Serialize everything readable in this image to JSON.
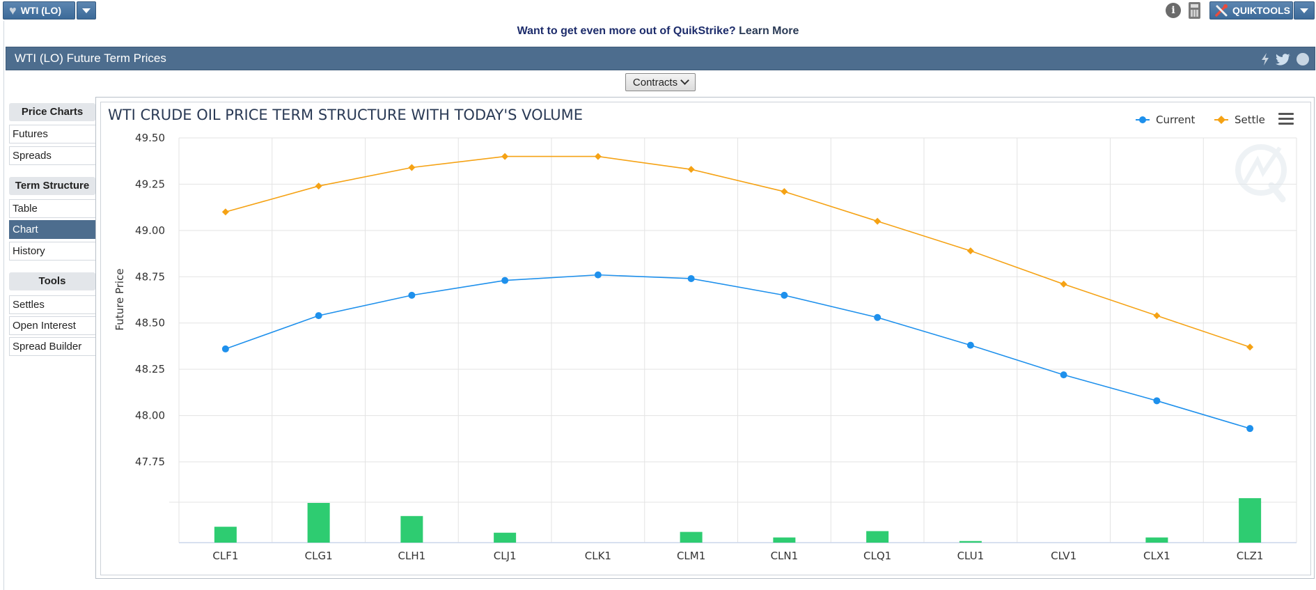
{
  "toolbar": {
    "product_label": "WTI (LO)",
    "quiktools_label": "QUIKTOOLS"
  },
  "promo": {
    "text": "Want to get even more out of QuikStrike?",
    "link": "Learn More"
  },
  "header": {
    "title": "WTI (LO) Future Term Prices"
  },
  "contracts_button": {
    "label": "Contracts"
  },
  "sidebar": {
    "sections": [
      {
        "title": "Price Charts",
        "items": [
          "Futures",
          "Spreads"
        ]
      },
      {
        "title": "Term Structure",
        "items": [
          "Table",
          "Chart",
          "History"
        ]
      },
      {
        "title": "Tools",
        "items": [
          "Settles",
          "Open Interest",
          "Spread Builder"
        ]
      }
    ],
    "active_item": "Chart"
  },
  "colors": {
    "current": "#1e90ec",
    "settle": "#f5a214",
    "volume": "#2ecc71",
    "header": "#4d6d8e"
  },
  "chart_data": {
    "type": "line",
    "title": "WTI CRUDE OIL PRICE TERM STRUCTURE WITH TODAY'S VOLUME",
    "ylabel": "Future Price",
    "categories": [
      "CLF1",
      "CLG1",
      "CLH1",
      "CLJ1",
      "CLK1",
      "CLM1",
      "CLN1",
      "CLQ1",
      "CLU1",
      "CLV1",
      "CLX1",
      "CLZ1"
    ],
    "ylim": [
      47.5,
      49.5
    ],
    "yticks": [
      "49.50",
      "49.25",
      "49.00",
      "48.75",
      "48.50",
      "48.25",
      "48.00",
      "47.75"
    ],
    "legend_position": "top-right",
    "grid": true,
    "series": [
      {
        "name": "Current",
        "values": [
          48.36,
          48.54,
          48.65,
          48.73,
          48.76,
          48.74,
          48.65,
          48.53,
          48.38,
          48.22,
          48.08,
          47.93
        ]
      },
      {
        "name": "Settle",
        "values": [
          49.1,
          49.24,
          49.34,
          49.4,
          49.4,
          49.33,
          49.21,
          49.05,
          48.89,
          48.71,
          48.54,
          48.37
        ]
      }
    ],
    "volume_relative": [
      0.4,
      1.0,
      0.67,
      0.25,
      0.0,
      0.27,
      0.13,
      0.29,
      0.04,
      0.0,
      0.13,
      1.12
    ]
  }
}
